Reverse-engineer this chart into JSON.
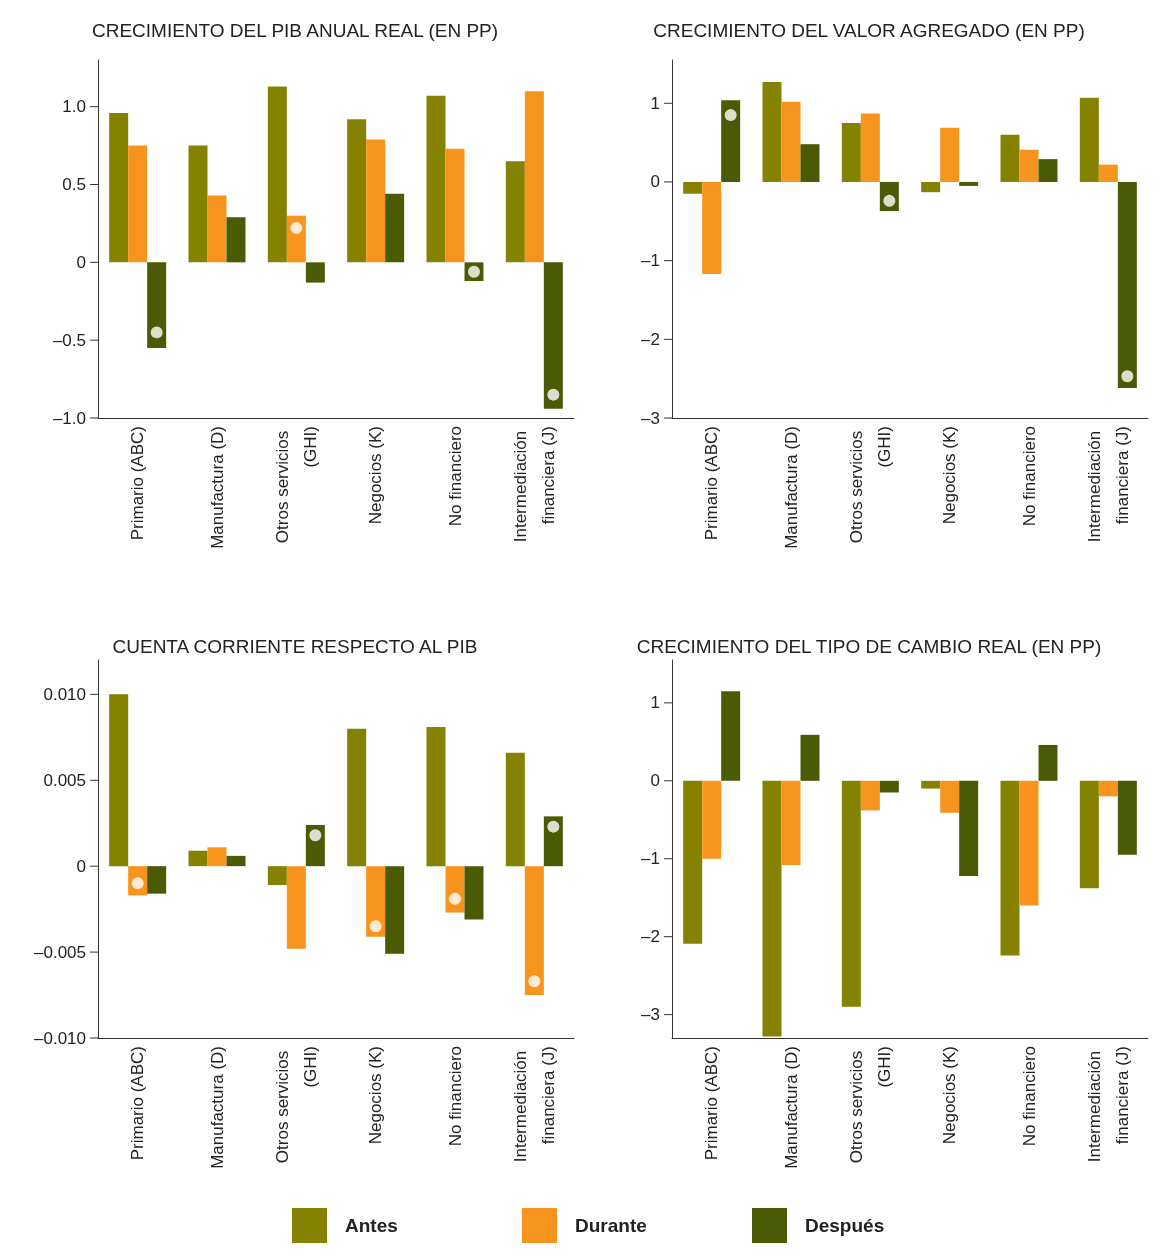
{
  "chart_data": [
    {
      "type": "bar",
      "title": "CRECIMIENTO DEL PIB ANUAL REAL (EN PP)",
      "categories": [
        "Primario (ABC)",
        "Manufactura (D)",
        "Otros servicios (GHI)",
        "Negocios (K)",
        "No financiero",
        "Intermediación financiera (J)"
      ],
      "series": [
        {
          "name": "Antes",
          "color": "#848200",
          "values": [
            0.96,
            0.75,
            1.13,
            0.92,
            1.07,
            0.65
          ]
        },
        {
          "name": "Durante",
          "color": "#f7941d",
          "values": [
            0.75,
            0.43,
            0.3,
            0.79,
            0.73,
            1.1
          ]
        },
        {
          "name": "Después",
          "color": "#4b5a04",
          "values": [
            -0.55,
            0.29,
            -0.13,
            0.44,
            -0.12,
            -0.94
          ]
        },
        {
          "type": "scatter",
          "color": "#ffffff",
          "x": [
            "Primario (ABC)",
            "Otros servicios (GHI)",
            "No financiero",
            "Intermediación financiera (J)"
          ],
          "values": [
            -0.45,
            0.22,
            -0.06,
            -0.85
          ]
        }
      ],
      "ylim": [
        -1.0,
        1.3
      ],
      "yticks": [
        {
          "value": -1.0,
          "label": "–1.0"
        },
        {
          "value": -0.5,
          "label": "–0.5"
        },
        {
          "value": 0,
          "label": "0"
        },
        {
          "value": 0.5,
          "label": "0.5"
        },
        {
          "value": 1.0,
          "label": "1.0"
        }
      ],
      "grid": false,
      "legend": "bottom"
    },
    {
      "type": "bar",
      "title": "CRECIMIENTO DEL VALOR AGREGADO (EN PP)",
      "categories": [
        "Primario (ABC)",
        "Manufactura (D)",
        "Otros servicios (GHI)",
        "Negocios (K)",
        "No financiero",
        "Intermediación financiera (J)"
      ],
      "series": [
        {
          "color": "#848200",
          "values": [
            -0.15,
            1.27,
            0.75,
            -0.13,
            0.6,
            1.07
          ]
        },
        {
          "color": "#f7941d",
          "values": [
            -1.17,
            1.02,
            0.87,
            0.69,
            0.41,
            0.22
          ]
        },
        {
          "color": "#4b5a04",
          "values": [
            1.04,
            0.48,
            -0.37,
            -0.05,
            0.29,
            -2.62
          ]
        },
        {
          "type": "scatter",
          "color": "#ffffff",
          "x": [
            "Primario (ABC)",
            "Otros servicios (GHI)",
            "Intermediación financiera (J)"
          ],
          "values": [
            0.85,
            -0.24,
            -2.47
          ]
        }
      ],
      "ylim": [
        -3,
        1.55
      ],
      "yticks": [
        {
          "value": -3,
          "label": "–3"
        },
        {
          "value": -2,
          "label": "–2"
        },
        {
          "value": -1,
          "label": "–1"
        },
        {
          "value": 0,
          "label": "0"
        },
        {
          "value": 1,
          "label": "1"
        }
      ],
      "grid": false
    },
    {
      "type": "bar",
      "title": "CUENTA CORRIENTE RESPECTO AL PIB",
      "categories": [
        "Primario (ABC)",
        "Manufactura (D)",
        "Otros servicios (GHI)",
        "Negocios (K)",
        "No financiero",
        "Intermediación financiera (J)"
      ],
      "series": [
        {
          "color": "#848200",
          "values": [
            0.01,
            0.0009,
            -0.0011,
            0.008,
            0.0081,
            0.0066
          ]
        },
        {
          "color": "#f7941d",
          "values": [
            -0.0017,
            0.0011,
            -0.0048,
            -0.0041,
            -0.0027,
            -0.0075
          ]
        },
        {
          "color": "#4b5a04",
          "values": [
            -0.0016,
            0.0006,
            0.0024,
            -0.0051,
            -0.0031,
            0.0029
          ]
        },
        {
          "type": "scatter",
          "color": "#ffffff",
          "x": [
            "Primario (ABC)",
            "Otros servicios (GHI)",
            "Negocios (K)",
            "No financiero",
            "Intermediación financiera (J)",
            "Intermediación financiera (J)"
          ],
          "values": [
            -0.001,
            0.0018,
            -0.0035,
            -0.0019,
            -0.0067,
            0.0023
          ]
        }
      ],
      "ylim": [
        -0.01,
        0.012
      ],
      "yticks": [
        {
          "value": -0.01,
          "label": "–0.010"
        },
        {
          "value": -0.005,
          "label": "–0.005"
        },
        {
          "value": 0,
          "label": "0"
        },
        {
          "value": 0.005,
          "label": "0.005"
        },
        {
          "value": 0.01,
          "label": "0.010"
        }
      ],
      "grid": false
    },
    {
      "type": "bar",
      "title": "CRECIMIENTO DEL TIPO DE CAMBIO REAL (EN PP)",
      "categories": [
        "Primario (ABC)",
        "Manufactura (D)",
        "Otros servicios (GHI)",
        "Negocios (K)",
        "No financiero",
        "Intermediación financiera (J)"
      ],
      "series": [
        {
          "color": "#848200",
          "values": [
            -2.09,
            -3.28,
            -2.9,
            -0.1,
            -2.24,
            -1.38
          ]
        },
        {
          "color": "#f7941d",
          "values": [
            -1.0,
            -1.08,
            -0.38,
            -0.41,
            -1.6,
            -0.2
          ]
        },
        {
          "color": "#4b5a04",
          "values": [
            1.15,
            0.59,
            -0.15,
            -1.22,
            0.46,
            -0.95
          ]
        }
      ],
      "ylim": [
        -3.3,
        1.55
      ],
      "yticks": [
        {
          "value": -3,
          "label": "–3"
        },
        {
          "value": -2,
          "label": "–2"
        },
        {
          "value": -1,
          "label": "–1"
        },
        {
          "value": 0,
          "label": "0"
        },
        {
          "value": 1,
          "label": "1"
        }
      ],
      "grid": false
    }
  ]
}
